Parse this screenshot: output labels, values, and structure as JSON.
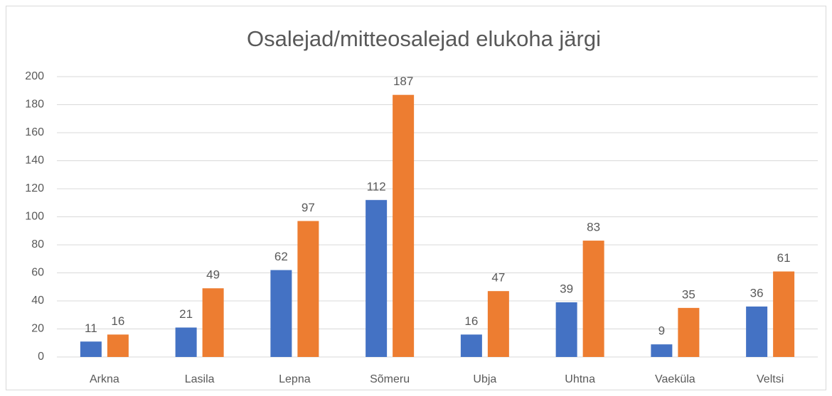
{
  "chart_data": {
    "type": "bar",
    "title": "Osalejad/mitteosalejad elukoha järgi",
    "categories": [
      "Arkna",
      "Lasila",
      "Lepna",
      "Sõmeru",
      "Ubja",
      "Uhtna",
      "Vaeküla",
      "Veltsi"
    ],
    "series": [
      {
        "color": "#4472c4",
        "values": [
          11,
          21,
          62,
          112,
          16,
          39,
          9,
          36
        ]
      },
      {
        "color": "#ed7d31",
        "values": [
          16,
          49,
          97,
          187,
          47,
          83,
          35,
          61
        ]
      }
    ],
    "ylim": [
      0,
      200
    ],
    "yticks": [
      0,
      20,
      40,
      60,
      80,
      100,
      120,
      140,
      160,
      180,
      200
    ],
    "grid": true
  }
}
